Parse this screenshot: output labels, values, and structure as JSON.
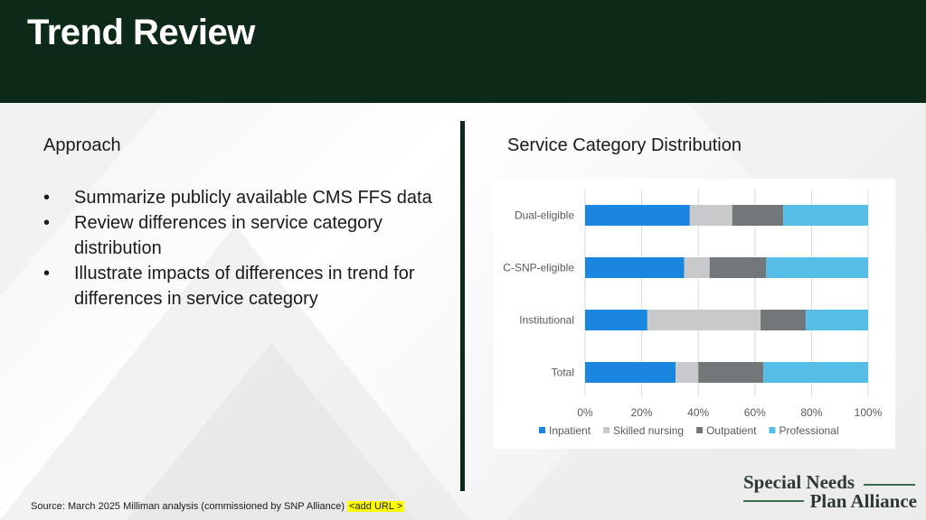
{
  "slide": {
    "title": "Trend Review",
    "approach_title": "Approach",
    "bullets": [
      "Summarize publicly available CMS FFS data",
      "Review differences in service category distribution",
      "Illustrate impacts of differences in trend for differences in service category"
    ],
    "chart_title": "Service Category Distribution",
    "source_text": "Source: March 2025 Milliman analysis (commissioned by SNP Alliance)",
    "source_url_placeholder": "<add URL >",
    "logo_line1": "Special Needs",
    "logo_line2": "Plan Alliance"
  },
  "chart_data": {
    "type": "bar",
    "orientation": "horizontal",
    "stacked": true,
    "categories": [
      "Dual-eligible",
      "C-SNP-eligible",
      "Institutional",
      "Total"
    ],
    "series": [
      {
        "name": "Inpatient",
        "color": "#1a86e0",
        "values": [
          37,
          35,
          22,
          32
        ]
      },
      {
        "name": "Skilled nursing",
        "color": "#c8c9ca",
        "values": [
          15,
          9,
          40,
          8
        ]
      },
      {
        "name": "Outpatient",
        "color": "#727879",
        "values": [
          18,
          20,
          16,
          23
        ]
      },
      {
        "name": "Professional",
        "color": "#55bde6",
        "values": [
          30,
          36,
          22,
          37
        ]
      }
    ],
    "xlim": [
      0,
      100
    ],
    "xticks": [
      "0%",
      "20%",
      "40%",
      "60%",
      "80%",
      "100%"
    ],
    "grid": true,
    "legend": "bottom"
  }
}
